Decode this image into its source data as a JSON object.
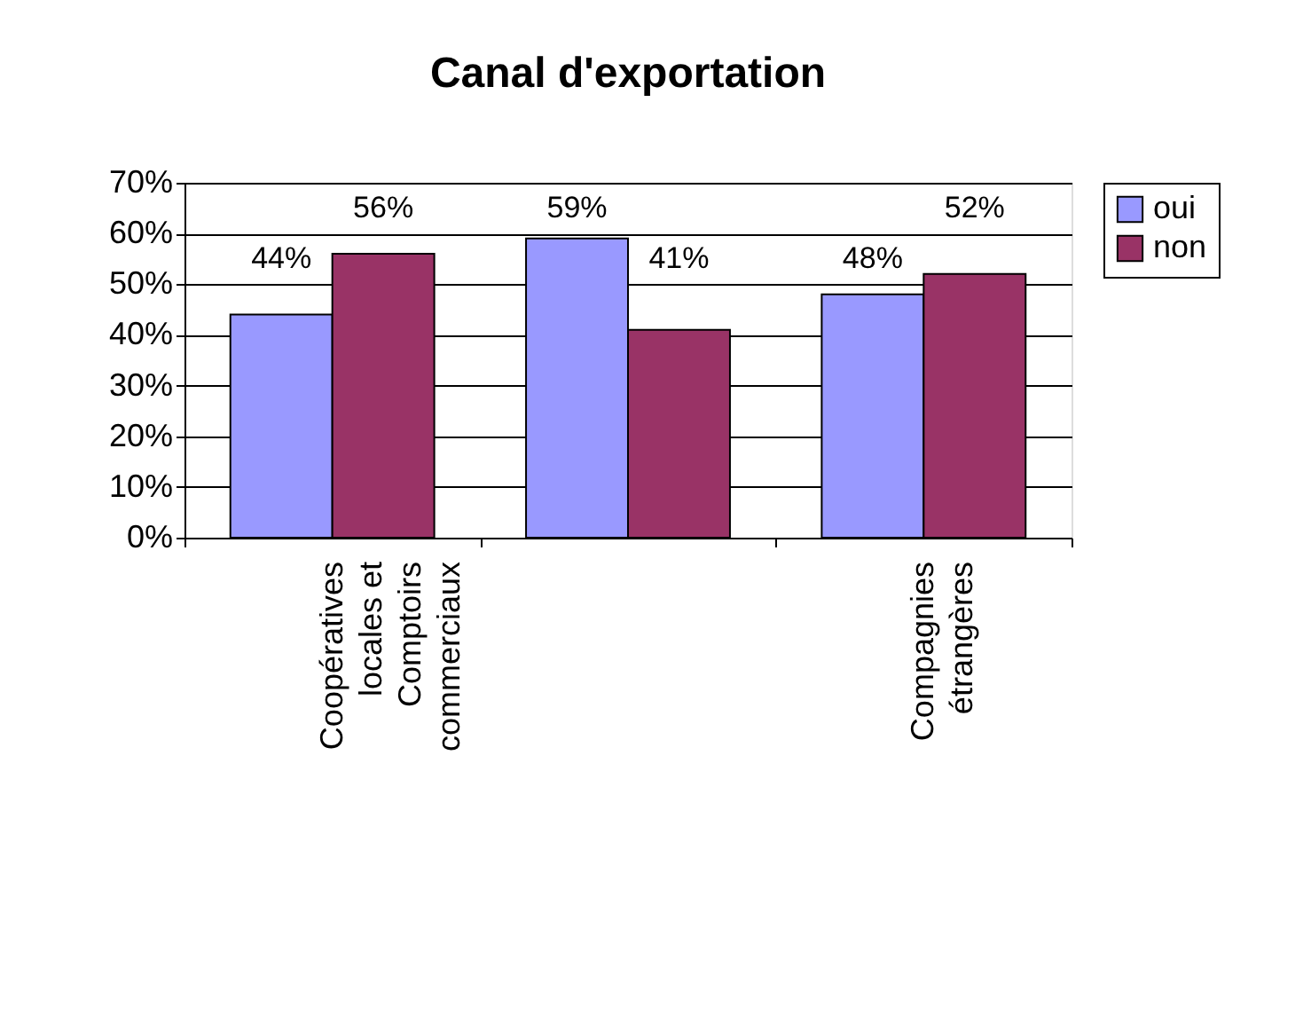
{
  "chart_data": {
    "type": "bar",
    "title": "Canal d'exportation",
    "categories": [
      "Coopératives locales et Comptoirs commerciaux",
      null,
      "Compagnies étrangères"
    ],
    "series": [
      {
        "name": "oui",
        "color": "#9999ff",
        "values": [
          44,
          59,
          48
        ],
        "value_labels": [
          "44%",
          "59%",
          "48%"
        ]
      },
      {
        "name": "non",
        "color": "#993366",
        "values": [
          56,
          41,
          52
        ],
        "value_labels": [
          "56%",
          "41%",
          "52%"
        ]
      }
    ],
    "ylim": [
      0,
      70
    ],
    "yticks": [
      {
        "value": 0,
        "label": "0%"
      },
      {
        "value": 10,
        "label": "10%"
      },
      {
        "value": 20,
        "label": "20%"
      },
      {
        "value": 30,
        "label": "30%"
      },
      {
        "value": 40,
        "label": "40%"
      },
      {
        "value": 50,
        "label": "50%"
      },
      {
        "value": 60,
        "label": "60%"
      },
      {
        "value": 70,
        "label": "70%"
      }
    ],
    "grid": "y",
    "legend": "right"
  }
}
